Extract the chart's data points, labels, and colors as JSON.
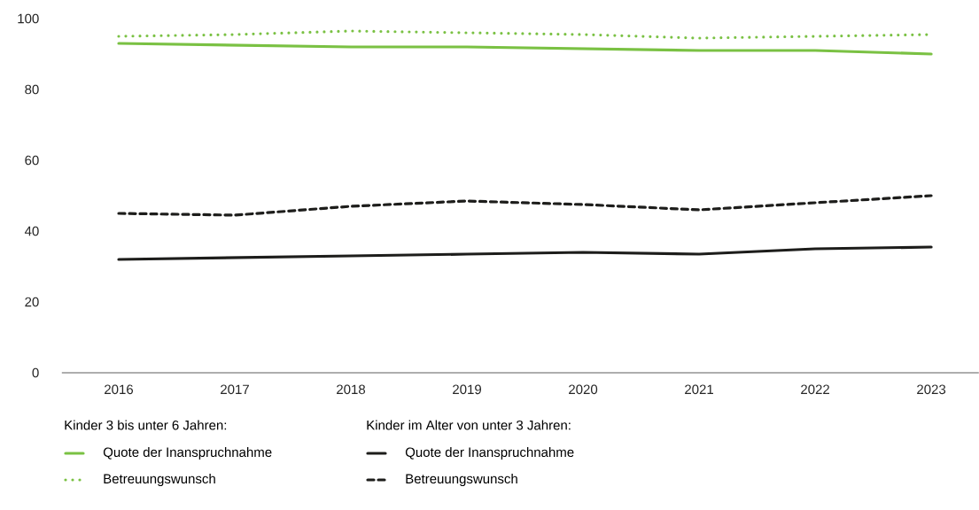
{
  "chart_data": {
    "type": "line",
    "categories": [
      "2016",
      "2017",
      "2018",
      "2019",
      "2020",
      "2021",
      "2022",
      "2023"
    ],
    "series": [
      {
        "name": "Quote der Inanspruchnahme",
        "color": "#7ac143",
        "line_style": "solid",
        "values": [
          93,
          92.5,
          92,
          92,
          91.5,
          91,
          91,
          90
        ]
      },
      {
        "name": "Betreuungswunsch",
        "color": "#7ac143",
        "line_style": "dotted",
        "values": [
          95,
          95.5,
          96.5,
          96,
          95.5,
          94.5,
          95,
          95.5
        ]
      },
      {
        "name": "Quote der Inanspruchnahme",
        "color": "#1d1d1b",
        "line_style": "solid",
        "values": [
          32,
          32.5,
          33,
          33.5,
          34,
          33.5,
          35,
          35.5
        ]
      },
      {
        "name": "Betreuungswunsch",
        "color": "#1d1d1b",
        "line_style": "dashed",
        "values": [
          45,
          44.5,
          47,
          48.5,
          47.5,
          46,
          48,
          50
        ]
      }
    ],
    "ylim": [
      0,
      100
    ],
    "yticks": [
      0,
      20,
      40,
      60,
      80,
      100
    ],
    "grid": false,
    "legend": "bottom",
    "marker": "none",
    "annotations": [
      "Kinder 3 bis unter 6 Jahren:",
      "Kinder im Alter von unter 3 Jahren:"
    ]
  }
}
